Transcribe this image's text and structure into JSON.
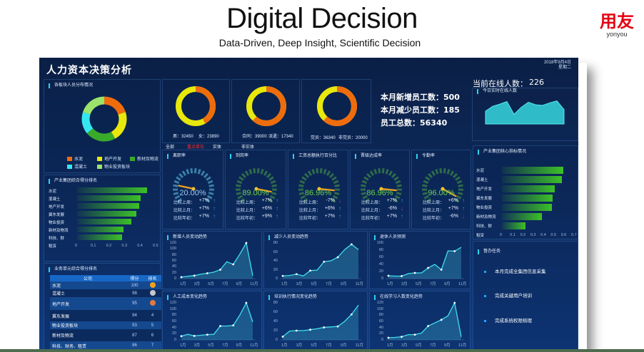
{
  "slide": {
    "title": "Digital Decision",
    "subtitle": "Data-Driven, Deep Insight, Scientific Decision",
    "brand_cn": "用友",
    "brand_en": "yonyou"
  },
  "dashboard": {
    "title": "人力资本决策分析",
    "date": "2018年9月4日",
    "weekday": "星期二",
    "colors": {
      "orange": "#ef6c0c",
      "yellow": "#e8e80c",
      "green": "#3aaa2a",
      "cyan": "#35e8f0",
      "lightgreen": "#9be36a",
      "accent": "#2bd1f0",
      "up": "#2a9df4",
      "down": "#7a3fd0",
      "gauge_red": "#e8e80c"
    }
  },
  "distribution": {
    "title": "各板块人员分布情况",
    "legend": [
      {
        "label": "水泥",
        "color": "#ef6c0c",
        "value": 20
      },
      {
        "label": "地产开发",
        "color": "#e8e80c",
        "value": 22
      },
      {
        "label": "新材及物流",
        "color": "#3aaa2a",
        "value": 22
      },
      {
        "label": "混凝土",
        "color": "#35e8f0",
        "value": 16
      },
      {
        "label": "物业投资板块",
        "color": "#9be36a",
        "value": 20
      }
    ]
  },
  "donuts": [
    {
      "labels": [
        "男：32450",
        "女：23890"
      ],
      "values": [
        32450,
        23890
      ]
    },
    {
      "labels": [
        "合同：39000",
        "派遣：17340"
      ],
      "values": [
        17340,
        39000
      ]
    },
    {
      "labels": [
        "党员：36340",
        "非党员：20000"
      ],
      "values": [
        20000,
        36340
      ]
    }
  ],
  "filters": [
    {
      "label": "全部",
      "active": false
    },
    {
      "label": "重点单位",
      "active": true
    },
    {
      "label": "实体",
      "active": false
    },
    {
      "label": "非实体",
      "active": false
    }
  ],
  "summary": {
    "new_label": "本月新增员工数：",
    "new_value": "500",
    "reduce_label": "本月减少员工数：",
    "reduce_value": "185",
    "total_label": "员工总数：",
    "total_value": "56340"
  },
  "online": {
    "label": "当前在线人数：",
    "value": "226",
    "chart_title": "今日实时在线人数",
    "series": [
      40,
      55,
      62,
      70,
      30,
      52,
      68,
      60,
      58,
      66,
      72,
      45
    ]
  },
  "gauges": [
    {
      "title": "离职率",
      "value": "20.00%",
      "pct": 20,
      "color": "#9ec7ef",
      "rows": [
        {
          "label": "比较上周：",
          "val": "+7%",
          "dir": "up"
        },
        {
          "label": "比较上月：",
          "val": "+7%",
          "dir": "up"
        },
        {
          "label": "比较年初：",
          "val": "+7%",
          "dir": "up"
        }
      ]
    },
    {
      "title": "到岗率",
      "value": "89.00%",
      "pct": 89,
      "color": "#6fd04f",
      "rows": [
        {
          "label": "比较上周：",
          "val": "+7%",
          "dir": "up"
        },
        {
          "label": "比较上月：",
          "val": "+6%",
          "dir": "up"
        },
        {
          "label": "比较年初：",
          "val": "+9%",
          "dir": "up"
        }
      ]
    },
    {
      "title": "工资总额执行百分比",
      "value": "86.96%",
      "pct": 86.96,
      "color": "#6fd04f",
      "rows": [
        {
          "label": "比较上周：",
          "val": "-7%",
          "dir": "down"
        },
        {
          "label": "比较上月：",
          "val": "+6%",
          "dir": "up"
        },
        {
          "label": "比较年初：",
          "val": "+7%",
          "dir": "up"
        }
      ]
    },
    {
      "title": "晋级达成率",
      "value": "86.96%",
      "pct": 86.96,
      "color": "#6fd04f",
      "rows": [
        {
          "label": "比较上周：",
          "val": "+7%",
          "dir": "up"
        },
        {
          "label": "比较上月：",
          "val": "-6%",
          "dir": "down"
        },
        {
          "label": "比较年初：",
          "val": "+7%",
          "dir": "up"
        }
      ]
    },
    {
      "title": "令勤率",
      "value": "96.00%",
      "pct": 96,
      "color": "#6fd04f",
      "rows": [
        {
          "label": "比较上周：",
          "val": "+6%",
          "dir": "up"
        },
        {
          "label": "比较上月：",
          "val": "+7%",
          "dir": "up"
        },
        {
          "label": "比较年初：",
          "val": "-6%",
          "dir": "down"
        }
      ]
    }
  ],
  "chart_data": [
    {
      "type": "bar",
      "title": "产业集团综合得分排名",
      "orientation": "horizontal",
      "categories": [
        "水泥",
        "混凝土",
        "地产开发",
        "冀东发展",
        "物业投资",
        "新材及物流",
        "科技、财务、租赁"
      ],
      "values": [
        0.45,
        0.41,
        0.4,
        0.38,
        0.35,
        0.3,
        0.29
      ],
      "xlim": [
        0,
        0.5
      ],
      "xticks": [
        "0",
        "0.1",
        "0.2",
        "0.3",
        "0.4",
        "0.5"
      ]
    },
    {
      "type": "bar",
      "title": "产业集团核心指标情况",
      "orientation": "horizontal",
      "categories": [
        "水泥",
        "混凝土",
        "地产开发",
        "冀东发展",
        "物业投资",
        "新材及物流",
        "科技、财务、租赁"
      ],
      "values": [
        0.6,
        0.59,
        0.52,
        0.5,
        0.49,
        0.39,
        0.23
      ],
      "xlim": [
        0,
        0.7
      ],
      "xticks": [
        "0",
        "0.1",
        "0.2",
        "0.3",
        "0.4",
        "0.5",
        "0.6",
        "0.7"
      ]
    },
    {
      "type": "area",
      "title": "新增人员变动趋势",
      "x": [
        "1月",
        "2月",
        "3月",
        "4月",
        "5月",
        "6月",
        "7月",
        "8月",
        "9月",
        "10月",
        "11月",
        "12月"
      ],
      "values": [
        5,
        8,
        10,
        15,
        18,
        22,
        30,
        57,
        48,
        82,
        120,
        10
      ],
      "ylim": [
        0,
        120
      ],
      "yticks": [
        "0",
        "20",
        "40",
        "60",
        "80",
        "100",
        "120"
      ]
    },
    {
      "type": "area",
      "title": "减少人员变动趋势",
      "x": [
        "1月",
        "2月",
        "3月",
        "4月",
        "5月",
        "6月",
        "7月",
        "8月",
        "9月",
        "10月",
        "11月",
        "12月"
      ],
      "values": [
        6,
        7,
        10,
        6,
        18,
        19,
        38,
        40,
        48,
        65,
        77,
        65
      ],
      "ylim": [
        0,
        80
      ],
      "yticks": [
        "0",
        "20",
        "40",
        "60",
        "80"
      ]
    },
    {
      "type": "area",
      "title": "退休人员预测",
      "x": [
        "1月",
        "2月",
        "3月",
        "4月",
        "5月",
        "6月",
        "7月",
        "8月",
        "9月",
        "10月",
        "11月",
        "12月"
      ],
      "values": [
        8,
        7,
        7,
        14,
        16,
        16,
        30,
        40,
        25,
        78,
        77,
        88
      ],
      "ylim": [
        0,
        100
      ],
      "yticks": [
        "0",
        "20",
        "40",
        "60",
        "80",
        "100"
      ]
    },
    {
      "type": "area",
      "title": "人工成本变化趋势",
      "x": [
        "1月",
        "2月",
        "3月",
        "4月",
        "5月",
        "6月",
        "7月",
        "8月",
        "9月",
        "10月",
        "11月",
        "12月"
      ],
      "values": [
        12,
        18,
        13,
        15,
        17,
        18,
        45,
        45,
        47,
        80,
        120,
        58
      ],
      "ylim": [
        0,
        120
      ],
      "yticks": [
        "0",
        "20",
        "40",
        "60",
        "80",
        "100",
        "120"
      ]
    },
    {
      "type": "area",
      "title": "培训执行情况变化趋势",
      "x": [
        "1月",
        "2月",
        "3月",
        "4月",
        "5月",
        "6月",
        "7月",
        "8月",
        "9月",
        "10月",
        "11月",
        "12月"
      ],
      "values": [
        7,
        19,
        20,
        20,
        22,
        24,
        27,
        28,
        29,
        40,
        55,
        75
      ],
      "ylim": [
        0,
        80
      ],
      "yticks": [
        "0",
        "20",
        "40",
        "60",
        "80"
      ]
    },
    {
      "type": "area",
      "title": "在线学习人数变化趋势",
      "x": [
        "1月",
        "2月",
        "3月",
        "4月",
        "5月",
        "6月",
        "7月",
        "8月",
        "9月",
        "10月",
        "11月",
        "12月"
      ],
      "values": [
        7,
        8,
        10,
        17,
        17,
        22,
        45,
        55,
        65,
        78,
        120,
        10
      ],
      "ylim": [
        0,
        120
      ],
      "yticks": [
        "0",
        "20",
        "40",
        "60",
        "80",
        "100",
        "120"
      ]
    }
  ],
  "xlabels": [
    "1月",
    "3月",
    "5月",
    "7月",
    "9月",
    "11月"
  ],
  "ranking": {
    "title": "业务单元综合得分排名",
    "headers": [
      "公司",
      "得分",
      "排名"
    ],
    "rows": [
      {
        "company": "水泥",
        "score": "100",
        "rank": "1",
        "medal": "gold"
      },
      {
        "company": "混凝土",
        "score": "98",
        "rank": "2",
        "medal": "silver"
      },
      {
        "company": "地产开发",
        "score": "95",
        "rank": "3",
        "medal": "bronze"
      },
      {
        "company": "冀东发展",
        "score": "94",
        "rank": "4"
      },
      {
        "company": "物业投资板块",
        "score": "93",
        "rank": "5"
      },
      {
        "company": "新材及物流",
        "score": "87",
        "rank": "6"
      },
      {
        "company": "科技、财务、租赁",
        "score": "86",
        "rank": "7"
      }
    ]
  },
  "tasks": {
    "title": "督办任务",
    "items": [
      "本月完成全集团信息采集",
      "完成关键用户培训",
      "完成系统权限梳理"
    ]
  }
}
